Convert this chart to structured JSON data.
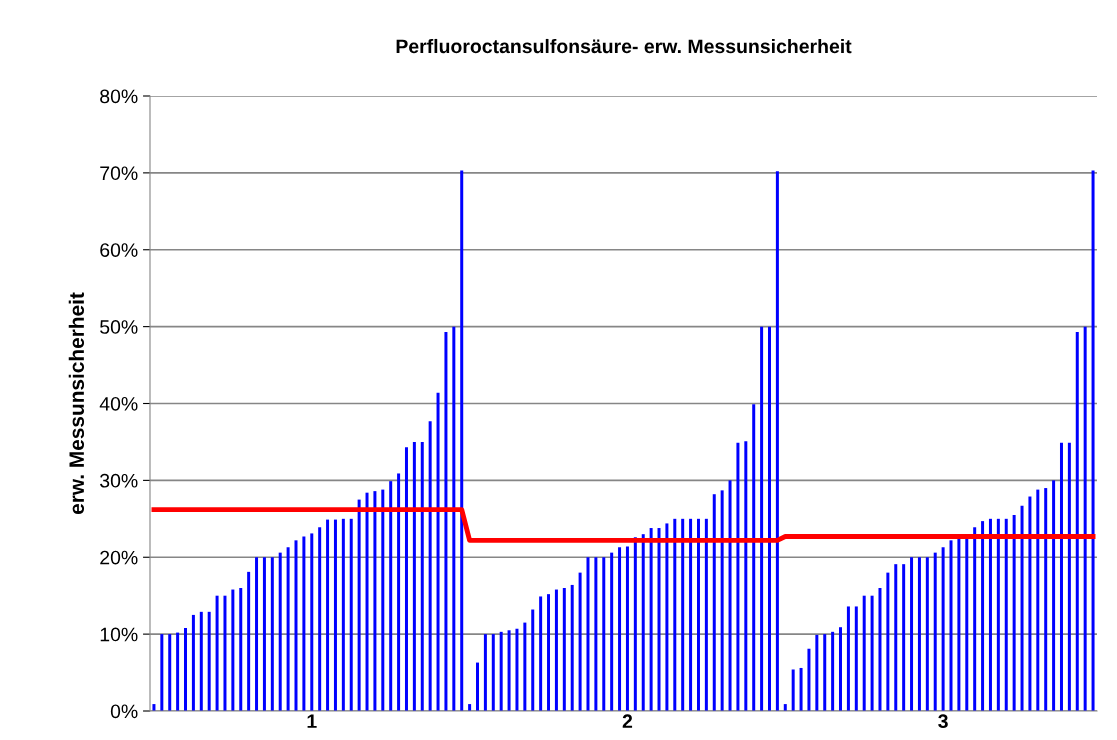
{
  "chart_data": {
    "type": "bar",
    "title": "Perfluoroctansulfonsäure- erw. Messunsicherheit",
    "ylabel": "erw. Messunsicherheit",
    "categories": [
      null,
      null,
      null,
      null,
      null,
      null,
      null,
      null,
      null,
      null,
      null,
      null,
      null,
      null,
      null,
      null,
      null,
      null,
      null,
      null,
      "1",
      null,
      null,
      null,
      null,
      null,
      null,
      null,
      null,
      null,
      null,
      null,
      null,
      null,
      null,
      null,
      null,
      null,
      null,
      null,
      null,
      null,
      null,
      null,
      null,
      null,
      null,
      null,
      null,
      null,
      null,
      null,
      null,
      null,
      null,
      null,
      null,
      null,
      null,
      null,
      "2",
      null,
      null,
      null,
      null,
      null,
      null,
      null,
      null,
      null,
      null,
      null,
      null,
      null,
      null,
      null,
      null,
      null,
      null,
      null,
      null,
      null,
      null,
      null,
      null,
      null,
      null,
      null,
      null,
      null,
      null,
      null,
      null,
      null,
      null,
      null,
      null,
      null,
      null,
      null,
      "3",
      null,
      null,
      null,
      null,
      null,
      null,
      null,
      null,
      null,
      null,
      null,
      null,
      null,
      null,
      null,
      null,
      null,
      null,
      null
    ],
    "series": [
      {
        "color": "#0000ff",
        "values": [
          0.9,
          10,
          10,
          10.2,
          10.8,
          12.5,
          12.9,
          12.9,
          15,
          15,
          15.8,
          16,
          18.1,
          20,
          20,
          20,
          20.6,
          21.3,
          22.2,
          22.7,
          23.1,
          23.9,
          24.9,
          24.9,
          25,
          25,
          27.5,
          28.4,
          28.6,
          28.8,
          29.9,
          30.9,
          34.3,
          35,
          35,
          37.7,
          41.4,
          49.3,
          50,
          70.3,
          0.9,
          6.3,
          10,
          10,
          10.3,
          10.5,
          10.7,
          11.5,
          13.2,
          14.9,
          15.2,
          15.8,
          16,
          16.4,
          18,
          20,
          20,
          20,
          20.6,
          21.3,
          21.4,
          22.6,
          23,
          23.8,
          23.8,
          24.4,
          25,
          25,
          25,
          25,
          25,
          28.2,
          28.7,
          30,
          34.9,
          35.1,
          39.9,
          50,
          50,
          70.2,
          0.9,
          5.4,
          5.6,
          8.1,
          9.9,
          10,
          10.3,
          10.9,
          13.6,
          13.6,
          15,
          15,
          16,
          18,
          19.1,
          19.1,
          20,
          20,
          20,
          20.6,
          21.3,
          22.2,
          22.5,
          22.5,
          23.9,
          24.7,
          25,
          25,
          25,
          25.5,
          26.7,
          27.9,
          28.8,
          29,
          30,
          34.9,
          34.9,
          49.3,
          50,
          70.3
        ]
      },
      {
        "type": "line",
        "color": "#ff0000",
        "values": [
          26.2,
          26.2,
          26.2,
          26.2,
          26.2,
          26.2,
          26.2,
          26.2,
          26.2,
          26.2,
          26.2,
          26.2,
          26.2,
          26.2,
          26.2,
          26.2,
          26.2,
          26.2,
          26.2,
          26.2,
          26.2,
          26.2,
          26.2,
          26.2,
          26.2,
          26.2,
          26.2,
          26.2,
          26.2,
          26.2,
          26.2,
          26.2,
          26.2,
          26.2,
          26.2,
          26.2,
          26.2,
          26.2,
          26.2,
          26.2,
          22.2,
          22.2,
          22.2,
          22.2,
          22.2,
          22.2,
          22.2,
          22.2,
          22.2,
          22.2,
          22.2,
          22.2,
          22.2,
          22.2,
          22.2,
          22.2,
          22.2,
          22.2,
          22.2,
          22.2,
          22.2,
          22.2,
          22.2,
          22.2,
          22.2,
          22.2,
          22.2,
          22.2,
          22.2,
          22.2,
          22.2,
          22.2,
          22.2,
          22.2,
          22.2,
          22.2,
          22.2,
          22.2,
          22.2,
          22.2,
          22.7,
          22.7,
          22.7,
          22.7,
          22.7,
          22.7,
          22.7,
          22.7,
          22.7,
          22.7,
          22.7,
          22.7,
          22.7,
          22.7,
          22.7,
          22.7,
          22.7,
          22.7,
          22.7,
          22.7,
          22.7,
          22.7,
          22.7,
          22.7,
          22.7,
          22.7,
          22.7,
          22.7,
          22.7,
          22.7,
          22.7,
          22.7,
          22.7,
          22.7,
          22.7,
          22.7,
          22.7,
          22.7,
          22.7,
          22.7
        ]
      }
    ],
    "ylim": [
      0,
      80
    ],
    "yticks": [
      {
        "value": 0,
        "label": "0%"
      },
      {
        "value": 10,
        "label": "10%"
      },
      {
        "value": 20,
        "label": "20%"
      },
      {
        "value": 30,
        "label": "30%"
      },
      {
        "value": 40,
        "label": "40%"
      },
      {
        "value": 50,
        "label": "50%"
      },
      {
        "value": 60,
        "label": "60%"
      },
      {
        "value": 70,
        "label": "70%"
      },
      {
        "value": 80,
        "label": "80%"
      }
    ],
    "grid": "y",
    "legend": false,
    "marker": "none",
    "line_style": "solid"
  }
}
